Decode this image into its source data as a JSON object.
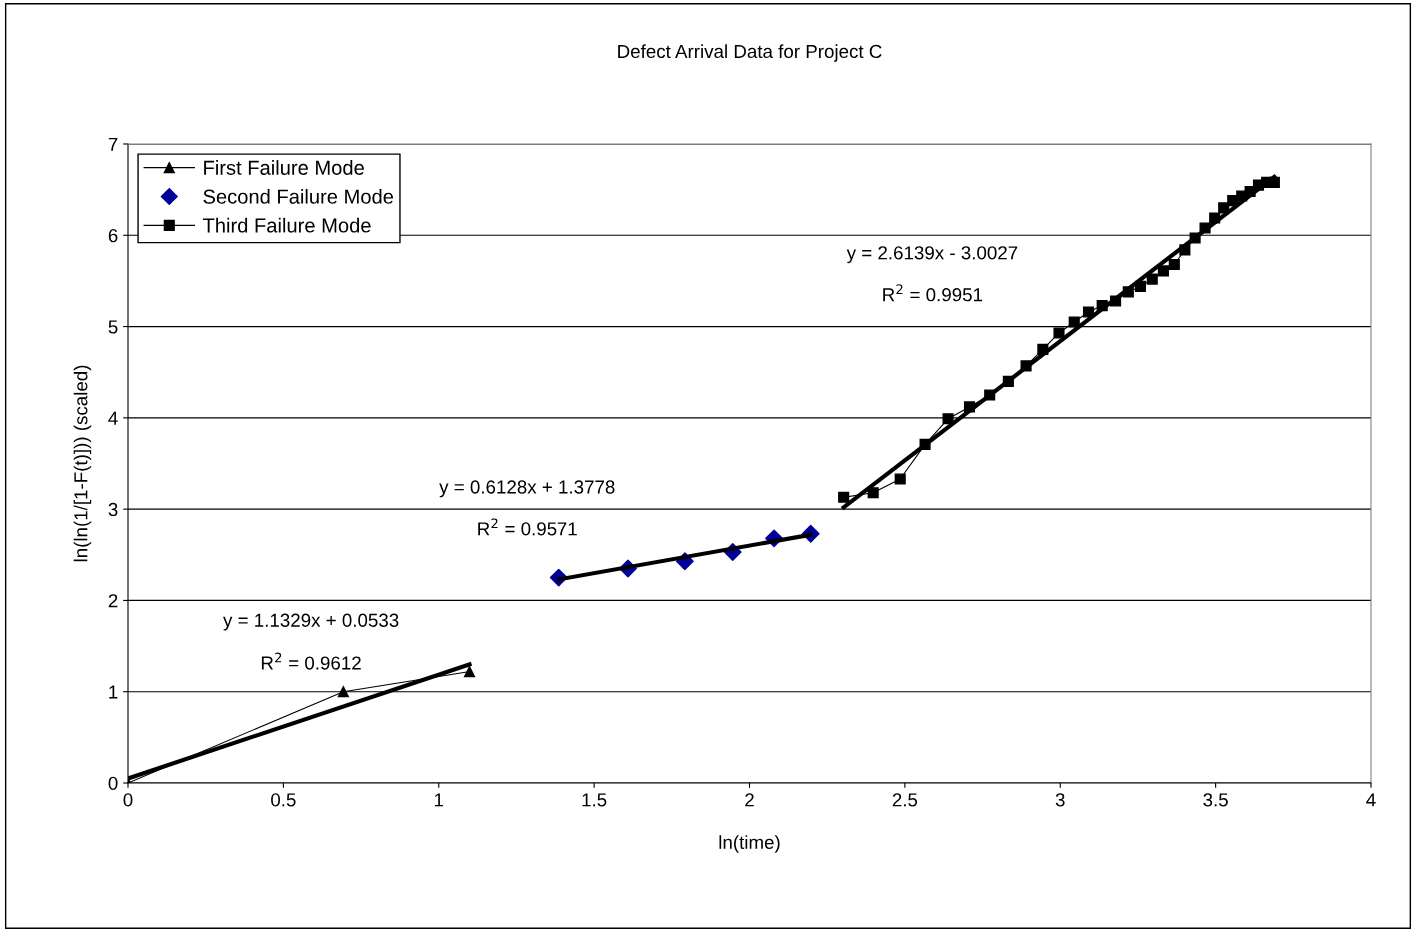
{
  "chart_data": {
    "type": "line",
    "title": "Defect Arrival Data for Project C",
    "xlabel": "ln(time)",
    "ylabel": "ln(ln(1/[1-F(t)])) (scaled)",
    "xlim": [
      0,
      4
    ],
    "ylim": [
      0,
      7
    ],
    "xticks": [
      0,
      0.5,
      1,
      1.5,
      2,
      2.5,
      3,
      3.5,
      4
    ],
    "yticks": [
      0,
      1,
      2,
      3,
      4,
      5,
      6,
      7
    ],
    "grid": "y",
    "legend": "top left",
    "series": [
      {
        "name": "First Failure Mode",
        "marker": "triangle",
        "color": "#000000",
        "x": [
          0,
          0.693,
          1.099
        ],
        "values": [
          0,
          1.0,
          1.22
        ]
      },
      {
        "name": "Second Failure Mode",
        "type": "scatter",
        "marker": "diamond",
        "color": "#000099",
        "x": [
          1.386,
          1.609,
          1.792,
          1.946,
          2.079,
          2.197
        ],
        "values": [
          2.25,
          2.35,
          2.43,
          2.53,
          2.68,
          2.73
        ]
      },
      {
        "name": "Third Failure Mode",
        "marker": "square",
        "color": "#000000",
        "x": [
          2.303,
          2.398,
          2.485,
          2.565,
          2.639,
          2.708,
          2.773,
          2.833,
          2.89,
          2.944,
          2.996,
          3.045,
          3.091,
          3.135,
          3.178,
          3.219,
          3.258,
          3.296,
          3.332,
          3.367,
          3.401,
          3.434,
          3.466,
          3.497,
          3.526,
          3.555,
          3.584,
          3.611,
          3.638,
          3.664,
          3.689
        ],
        "values": [
          3.13,
          3.18,
          3.33,
          3.71,
          3.99,
          4.12,
          4.25,
          4.4,
          4.57,
          4.75,
          4.93,
          5.05,
          5.16,
          5.23,
          5.28,
          5.38,
          5.44,
          5.52,
          5.61,
          5.68,
          5.84,
          5.97,
          6.08,
          6.19,
          6.3,
          6.38,
          6.43,
          6.48,
          6.55,
          6.58,
          6.58
        ]
      },
      {
        "marker": "none",
        "color": "#000000",
        "x": [
          0,
          1.099
        ],
        "values": [
          0.05,
          1.3
        ]
      },
      {
        "marker": "none",
        "color": "#000000",
        "x": [
          1.386,
          2.197
        ],
        "values": [
          2.23,
          2.72
        ]
      },
      {
        "marker": "none",
        "color": "#000000",
        "x": [
          2.303,
          3.689
        ],
        "values": [
          3.02,
          6.64
        ]
      }
    ],
    "annotations": [
      "y = 1.1329x + 0.0533",
      "R$^{2}$ = 0.9612",
      "y = 0.6128x + 1.3778",
      "R$^{2}$ = 0.9571",
      "y = 2.6139x - 3.0027",
      "R$^{2}$ = 0.9951"
    ]
  }
}
